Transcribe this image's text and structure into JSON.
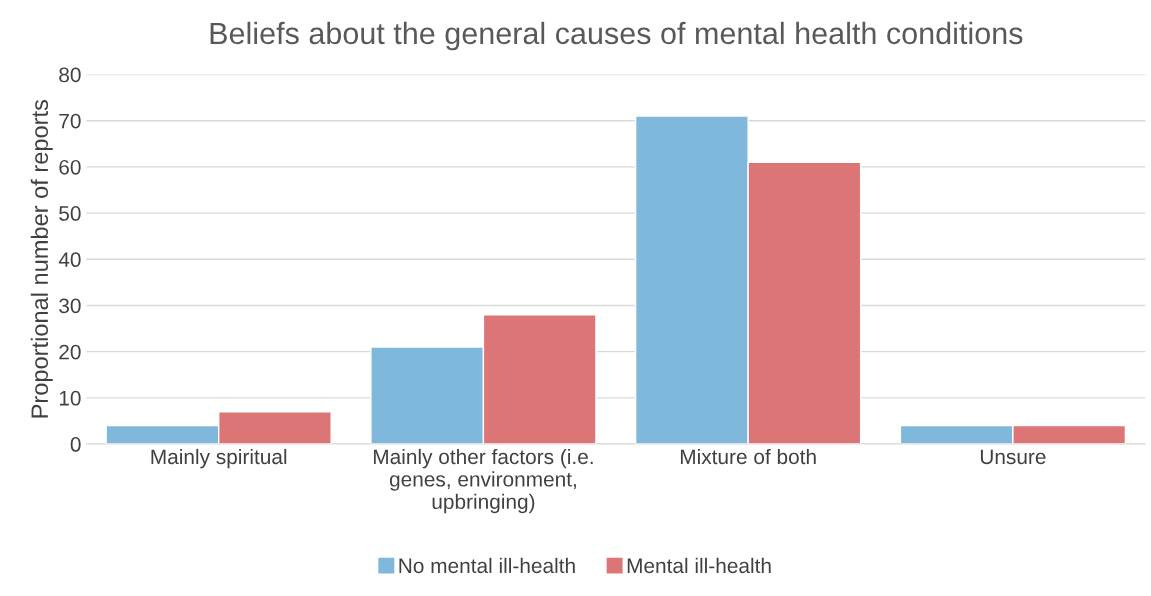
{
  "chart_data": {
    "type": "bar",
    "title": "Beliefs about the general causes of mental health conditions",
    "ylabel": "Proportional number of reports",
    "categories": [
      "Mainly spiritual",
      "Mainly other factors (i.e.\ngenes, environment,\nupbringing)",
      "Mixture of both",
      "Unsure"
    ],
    "series": [
      {
        "name": "No mental ill-health",
        "color": "#7fb8da",
        "values": [
          4,
          21,
          71,
          4
        ]
      },
      {
        "name": "Mental ill-health",
        "color": "#dc7676",
        "values": [
          7,
          28,
          61,
          4
        ]
      }
    ],
    "ylim": [
      0,
      80
    ],
    "yticks": [
      0,
      10,
      20,
      30,
      40,
      50,
      60,
      70,
      80
    ],
    "grid": "y",
    "legend": "bottom"
  }
}
